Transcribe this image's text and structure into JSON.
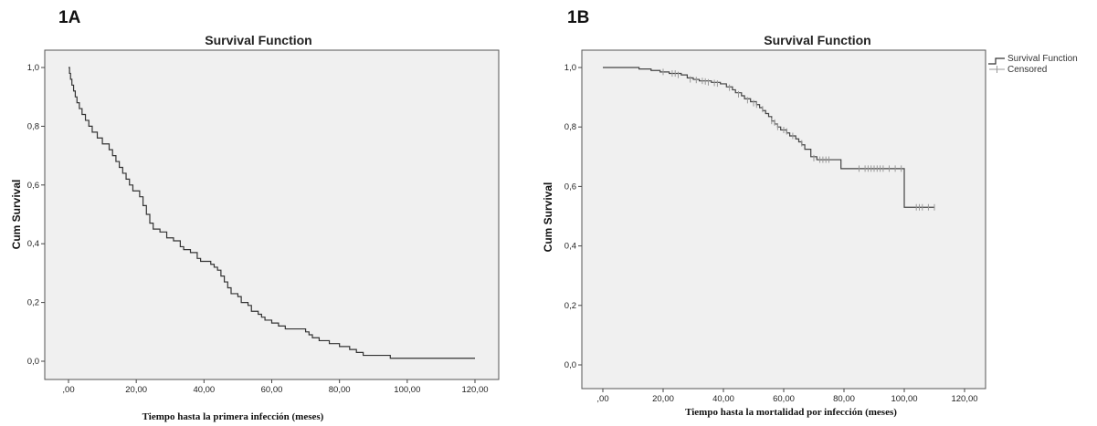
{
  "chart_data": [
    {
      "id": "A",
      "panel_label": "1A",
      "type": "line",
      "title": "Survival Function",
      "xlabel": "Tiempo hasta la primera infección (meses)",
      "ylabel": "Cum Survival",
      "xlim": [
        0,
        120
      ],
      "ylim": [
        0,
        1
      ],
      "x_ticks": [
        0,
        20,
        40,
        60,
        80,
        100,
        120
      ],
      "x_tick_labels": [
        ",00",
        "20,00",
        "40,00",
        "60,00",
        "80,00",
        "100,00",
        "120,00"
      ],
      "y_ticks": [
        0,
        0.2,
        0.4,
        0.6,
        0.8,
        1.0
      ],
      "y_tick_labels": [
        "0,0",
        "0,2",
        "0,4",
        "0,6",
        "0,8",
        "1,0"
      ],
      "grid": false,
      "series": [
        {
          "step": true,
          "points": [
            [
              0,
              1.0
            ],
            [
              0.3,
              0.98
            ],
            [
              0.6,
              0.96
            ],
            [
              1,
              0.94
            ],
            [
              1.5,
              0.92
            ],
            [
              2,
              0.9
            ],
            [
              2.5,
              0.88
            ],
            [
              3.2,
              0.86
            ],
            [
              4,
              0.84
            ],
            [
              5,
              0.82
            ],
            [
              6,
              0.8
            ],
            [
              7,
              0.78
            ],
            [
              8.5,
              0.76
            ],
            [
              10,
              0.74
            ],
            [
              12,
              0.72
            ],
            [
              13,
              0.7
            ],
            [
              14,
              0.68
            ],
            [
              15,
              0.66
            ],
            [
              16,
              0.64
            ],
            [
              17,
              0.62
            ],
            [
              18,
              0.6
            ],
            [
              19,
              0.58
            ],
            [
              21,
              0.56
            ],
            [
              22,
              0.53
            ],
            [
              23,
              0.5
            ],
            [
              24,
              0.47
            ],
            [
              25,
              0.45
            ],
            [
              27,
              0.44
            ],
            [
              29,
              0.42
            ],
            [
              31,
              0.41
            ],
            [
              33,
              0.39
            ],
            [
              34,
              0.38
            ],
            [
              36,
              0.37
            ],
            [
              38,
              0.35
            ],
            [
              39,
              0.34
            ],
            [
              42,
              0.33
            ],
            [
              43,
              0.32
            ],
            [
              44,
              0.31
            ],
            [
              45,
              0.29
            ],
            [
              46,
              0.27
            ],
            [
              47,
              0.25
            ],
            [
              48,
              0.23
            ],
            [
              50,
              0.22
            ],
            [
              51,
              0.2
            ],
            [
              53,
              0.19
            ],
            [
              54,
              0.17
            ],
            [
              56,
              0.16
            ],
            [
              57,
              0.15
            ],
            [
              58,
              0.14
            ],
            [
              60,
              0.13
            ],
            [
              62,
              0.12
            ],
            [
              64,
              0.11
            ],
            [
              70,
              0.1
            ],
            [
              71,
              0.09
            ],
            [
              72,
              0.08
            ],
            [
              74,
              0.07
            ],
            [
              77,
              0.06
            ],
            [
              80,
              0.05
            ],
            [
              83,
              0.04
            ],
            [
              85,
              0.03
            ],
            [
              87,
              0.02
            ],
            [
              95,
              0.01
            ],
            [
              120,
              0.01
            ]
          ]
        }
      ]
    },
    {
      "id": "B",
      "panel_label": "1B",
      "type": "line",
      "title": "Survival Function",
      "xlabel": "Tiempo  hasta  la mortalidad  por  infección  (meses)",
      "ylabel": "Cum Survival",
      "xlim": [
        0,
        120
      ],
      "ylim": [
        0,
        1
      ],
      "x_ticks": [
        0,
        20,
        40,
        60,
        80,
        100,
        120
      ],
      "x_tick_labels": [
        ",00",
        "20,00",
        "40,00",
        "60,00",
        "80,00",
        "100,00",
        "120,00"
      ],
      "y_ticks": [
        0,
        0.2,
        0.4,
        0.6,
        0.8,
        1.0
      ],
      "y_tick_labels": [
        "0,0",
        "0,2",
        "0,4",
        "0,6",
        "0,8",
        "1,0"
      ],
      "grid": false,
      "legend": {
        "position": "top-right-outside",
        "entries": [
          "Survival Function",
          "Censored"
        ]
      },
      "series": [
        {
          "name": "Survival Function",
          "step": true,
          "points": [
            [
              0,
              1.0
            ],
            [
              12,
              0.995
            ],
            [
              16,
              0.99
            ],
            [
              19,
              0.985
            ],
            [
              22,
              0.98
            ],
            [
              26,
              0.975
            ],
            [
              28,
              0.965
            ],
            [
              30,
              0.96
            ],
            [
              32,
              0.955
            ],
            [
              36,
              0.95
            ],
            [
              39,
              0.945
            ],
            [
              41,
              0.935
            ],
            [
              43,
              0.925
            ],
            [
              44,
              0.915
            ],
            [
              46,
              0.905
            ],
            [
              47,
              0.895
            ],
            [
              49,
              0.885
            ],
            [
              51,
              0.875
            ],
            [
              52,
              0.865
            ],
            [
              53,
              0.855
            ],
            [
              54,
              0.845
            ],
            [
              55,
              0.835
            ],
            [
              56,
              0.82
            ],
            [
              57,
              0.81
            ],
            [
              58,
              0.8
            ],
            [
              59,
              0.79
            ],
            [
              61,
              0.78
            ],
            [
              62,
              0.77
            ],
            [
              64,
              0.76
            ],
            [
              65,
              0.75
            ],
            [
              66,
              0.74
            ],
            [
              67,
              0.725
            ],
            [
              69,
              0.7
            ],
            [
              71,
              0.69
            ],
            [
              79,
              0.66
            ],
            [
              100,
              0.66
            ],
            [
              100,
              0.53
            ],
            [
              110,
              0.53
            ]
          ]
        },
        {
          "name": "Censored",
          "marks": [
            [
              20,
              0.985
            ],
            [
              23,
              0.98
            ],
            [
              24,
              0.98
            ],
            [
              25,
              0.975
            ],
            [
              29,
              0.96
            ],
            [
              31,
              0.958
            ],
            [
              33,
              0.955
            ],
            [
              34,
              0.953
            ],
            [
              35,
              0.95
            ],
            [
              37,
              0.948
            ],
            [
              38,
              0.946
            ],
            [
              42,
              0.932
            ],
            [
              45,
              0.91
            ],
            [
              48,
              0.89
            ],
            [
              50,
              0.88
            ],
            [
              51,
              0.875
            ],
            [
              53,
              0.86
            ],
            [
              56,
              0.82
            ],
            [
              57,
              0.815
            ],
            [
              58,
              0.8
            ],
            [
              60,
              0.79
            ],
            [
              61,
              0.785
            ],
            [
              63,
              0.77
            ],
            [
              66,
              0.745
            ],
            [
              70,
              0.695
            ],
            [
              72,
              0.69
            ],
            [
              73,
              0.69
            ],
            [
              74,
              0.69
            ],
            [
              75,
              0.69
            ],
            [
              85,
              0.66
            ],
            [
              87,
              0.66
            ],
            [
              88,
              0.66
            ],
            [
              89,
              0.66
            ],
            [
              90,
              0.66
            ],
            [
              91,
              0.66
            ],
            [
              92,
              0.66
            ],
            [
              93,
              0.66
            ],
            [
              95,
              0.66
            ],
            [
              97,
              0.66
            ],
            [
              99,
              0.66
            ],
            [
              104,
              0.53
            ],
            [
              105,
              0.53
            ],
            [
              106,
              0.53
            ],
            [
              108,
              0.53
            ],
            [
              110,
              0.53
            ]
          ]
        }
      ]
    }
  ]
}
